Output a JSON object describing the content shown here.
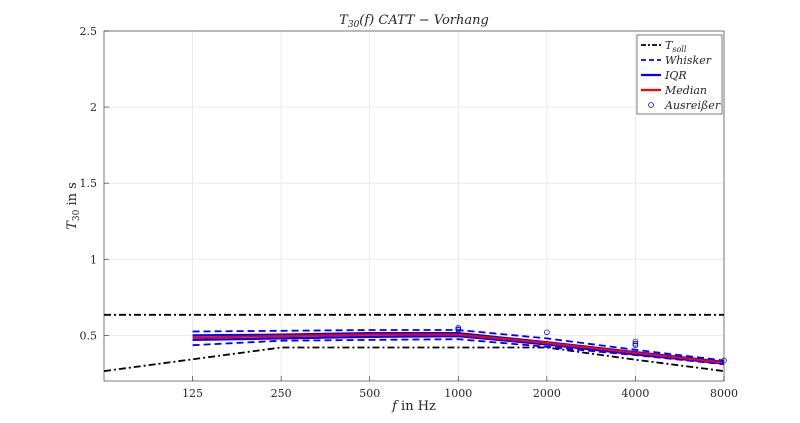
{
  "chart_data": {
    "type": "line",
    "title": "T30(f) CATT − Vorhang",
    "xlabel": "f in Hz",
    "ylabel": "T30 in s",
    "x_scale": "log2",
    "xlim": [
      62.5,
      8000
    ],
    "ylim": [
      0.2,
      2.5
    ],
    "xticks": [
      125,
      250,
      500,
      1000,
      2000,
      4000,
      8000
    ],
    "xtick_labels": [
      "125",
      "250",
      "500",
      "1000",
      "2000",
      "4000",
      "8000"
    ],
    "yticks": [
      0.5,
      1,
      1.5,
      2,
      2.5
    ],
    "ytick_labels": [
      "0.5",
      "1",
      "1.5",
      "2",
      "2.5"
    ],
    "grid": true,
    "legend_position": "top-right",
    "colors": {
      "tsoll": "#000000",
      "whisker": "#0000ff",
      "iqr": "#0000ff",
      "median": "#ff0000",
      "outlier": "#0000ff"
    },
    "series": [
      {
        "name": "T_soll",
        "style": "dash-dot-black",
        "x": [
          62.5,
          8000
        ],
        "y": [
          0.635,
          0.635
        ]
      },
      {
        "name": "",
        "style": "dash-dot-black",
        "x": [
          62.5,
          250,
          1000,
          2000,
          4000,
          8000
        ],
        "y": [
          0.265,
          0.42,
          0.42,
          0.42,
          0.34,
          0.265
        ]
      },
      {
        "name": "Whisker",
        "style": "dashed-blue",
        "x": [
          125,
          250,
          500,
          1000,
          2000,
          4000,
          8000
        ],
        "y": [
          0.525,
          0.53,
          0.535,
          0.535,
          0.48,
          0.405,
          0.335
        ]
      },
      {
        "name": "",
        "style": "dashed-blue",
        "x": [
          125,
          250,
          500,
          1000,
          2000,
          4000,
          8000
        ],
        "y": [
          0.435,
          0.465,
          0.47,
          0.475,
          0.425,
          0.37,
          0.31
        ]
      },
      {
        "name": "IQR",
        "style": "solid-blue",
        "x": [
          125,
          250,
          500,
          1000,
          2000,
          4000,
          8000
        ],
        "y": [
          0.5,
          0.505,
          0.515,
          0.515,
          0.455,
          0.39,
          0.325
        ]
      },
      {
        "name": "",
        "style": "solid-blue",
        "x": [
          125,
          250,
          500,
          1000,
          2000,
          4000,
          8000
        ],
        "y": [
          0.47,
          0.48,
          0.49,
          0.495,
          0.44,
          0.375,
          0.315
        ]
      },
      {
        "name": "Median",
        "style": "solid-red",
        "x": [
          125,
          250,
          500,
          1000,
          2000,
          4000,
          8000
        ],
        "y": [
          0.485,
          0.495,
          0.505,
          0.505,
          0.45,
          0.385,
          0.32
        ]
      }
    ],
    "outliers": {
      "name": "Ausreißer",
      "x": [
        1000,
        1000,
        1000,
        2000,
        4000,
        4000,
        4000,
        8000
      ],
      "y": [
        0.55,
        0.54,
        0.535,
        0.52,
        0.46,
        0.445,
        0.435,
        0.335
      ]
    },
    "legend": [
      {
        "label": "T_soll",
        "base": "T",
        "sub": "soll",
        "style": "dash-dot-black"
      },
      {
        "label": "Whisker",
        "base": "Whisker",
        "sub": "",
        "style": "dashed-blue"
      },
      {
        "label": "IQR",
        "base": "IQR",
        "sub": "",
        "style": "solid-blue"
      },
      {
        "label": "Median",
        "base": "Median",
        "sub": "",
        "style": "solid-red"
      },
      {
        "label": "Ausreißer",
        "base": "Ausreißer",
        "sub": "",
        "style": "marker-circle-blue"
      }
    ],
    "title_parts": {
      "base": "T",
      "sub": "30",
      "rest": "(f) CATT − Vorhang"
    },
    "ylabel_parts": {
      "base": "T",
      "sub": "30",
      "rest": " in s"
    }
  }
}
